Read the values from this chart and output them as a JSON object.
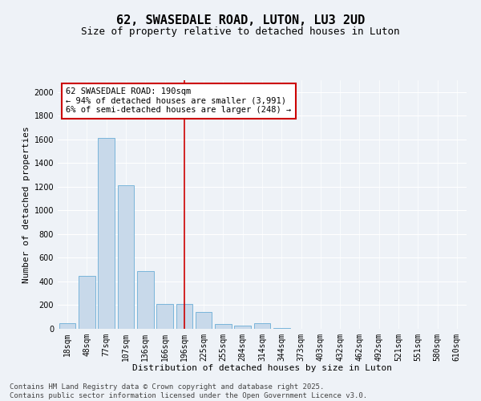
{
  "title": "62, SWASEDALE ROAD, LUTON, LU3 2UD",
  "subtitle": "Size of property relative to detached houses in Luton",
  "xlabel": "Distribution of detached houses by size in Luton",
  "ylabel": "Number of detached properties",
  "categories": [
    "18sqm",
    "48sqm",
    "77sqm",
    "107sqm",
    "136sqm",
    "166sqm",
    "196sqm",
    "225sqm",
    "255sqm",
    "284sqm",
    "314sqm",
    "344sqm",
    "373sqm",
    "403sqm",
    "432sqm",
    "462sqm",
    "492sqm",
    "521sqm",
    "551sqm",
    "580sqm",
    "610sqm"
  ],
  "values": [
    50,
    450,
    1610,
    1210,
    490,
    210,
    210,
    140,
    40,
    28,
    50,
    5,
    0,
    0,
    0,
    0,
    0,
    0,
    0,
    0,
    0
  ],
  "bar_color": "#c8d9ea",
  "bar_edge_color": "#6aaed6",
  "vline_x": 6,
  "vline_color": "#cc0000",
  "annotation_text": "62 SWASEDALE ROAD: 190sqm\n← 94% of detached houses are smaller (3,991)\n6% of semi-detached houses are larger (248) →",
  "annotation_box_color": "#ffffff",
  "annotation_box_edge": "#cc0000",
  "ylim": [
    0,
    2100
  ],
  "yticks": [
    0,
    200,
    400,
    600,
    800,
    1000,
    1200,
    1400,
    1600,
    1800,
    2000
  ],
  "background_color": "#eef2f7",
  "grid_color": "#ffffff",
  "footnote": "Contains HM Land Registry data © Crown copyright and database right 2025.\nContains public sector information licensed under the Open Government Licence v3.0.",
  "title_fontsize": 11,
  "subtitle_fontsize": 9,
  "xlabel_fontsize": 8,
  "ylabel_fontsize": 8,
  "tick_fontsize": 7,
  "annot_fontsize": 7.5,
  "footnote_fontsize": 6.5
}
